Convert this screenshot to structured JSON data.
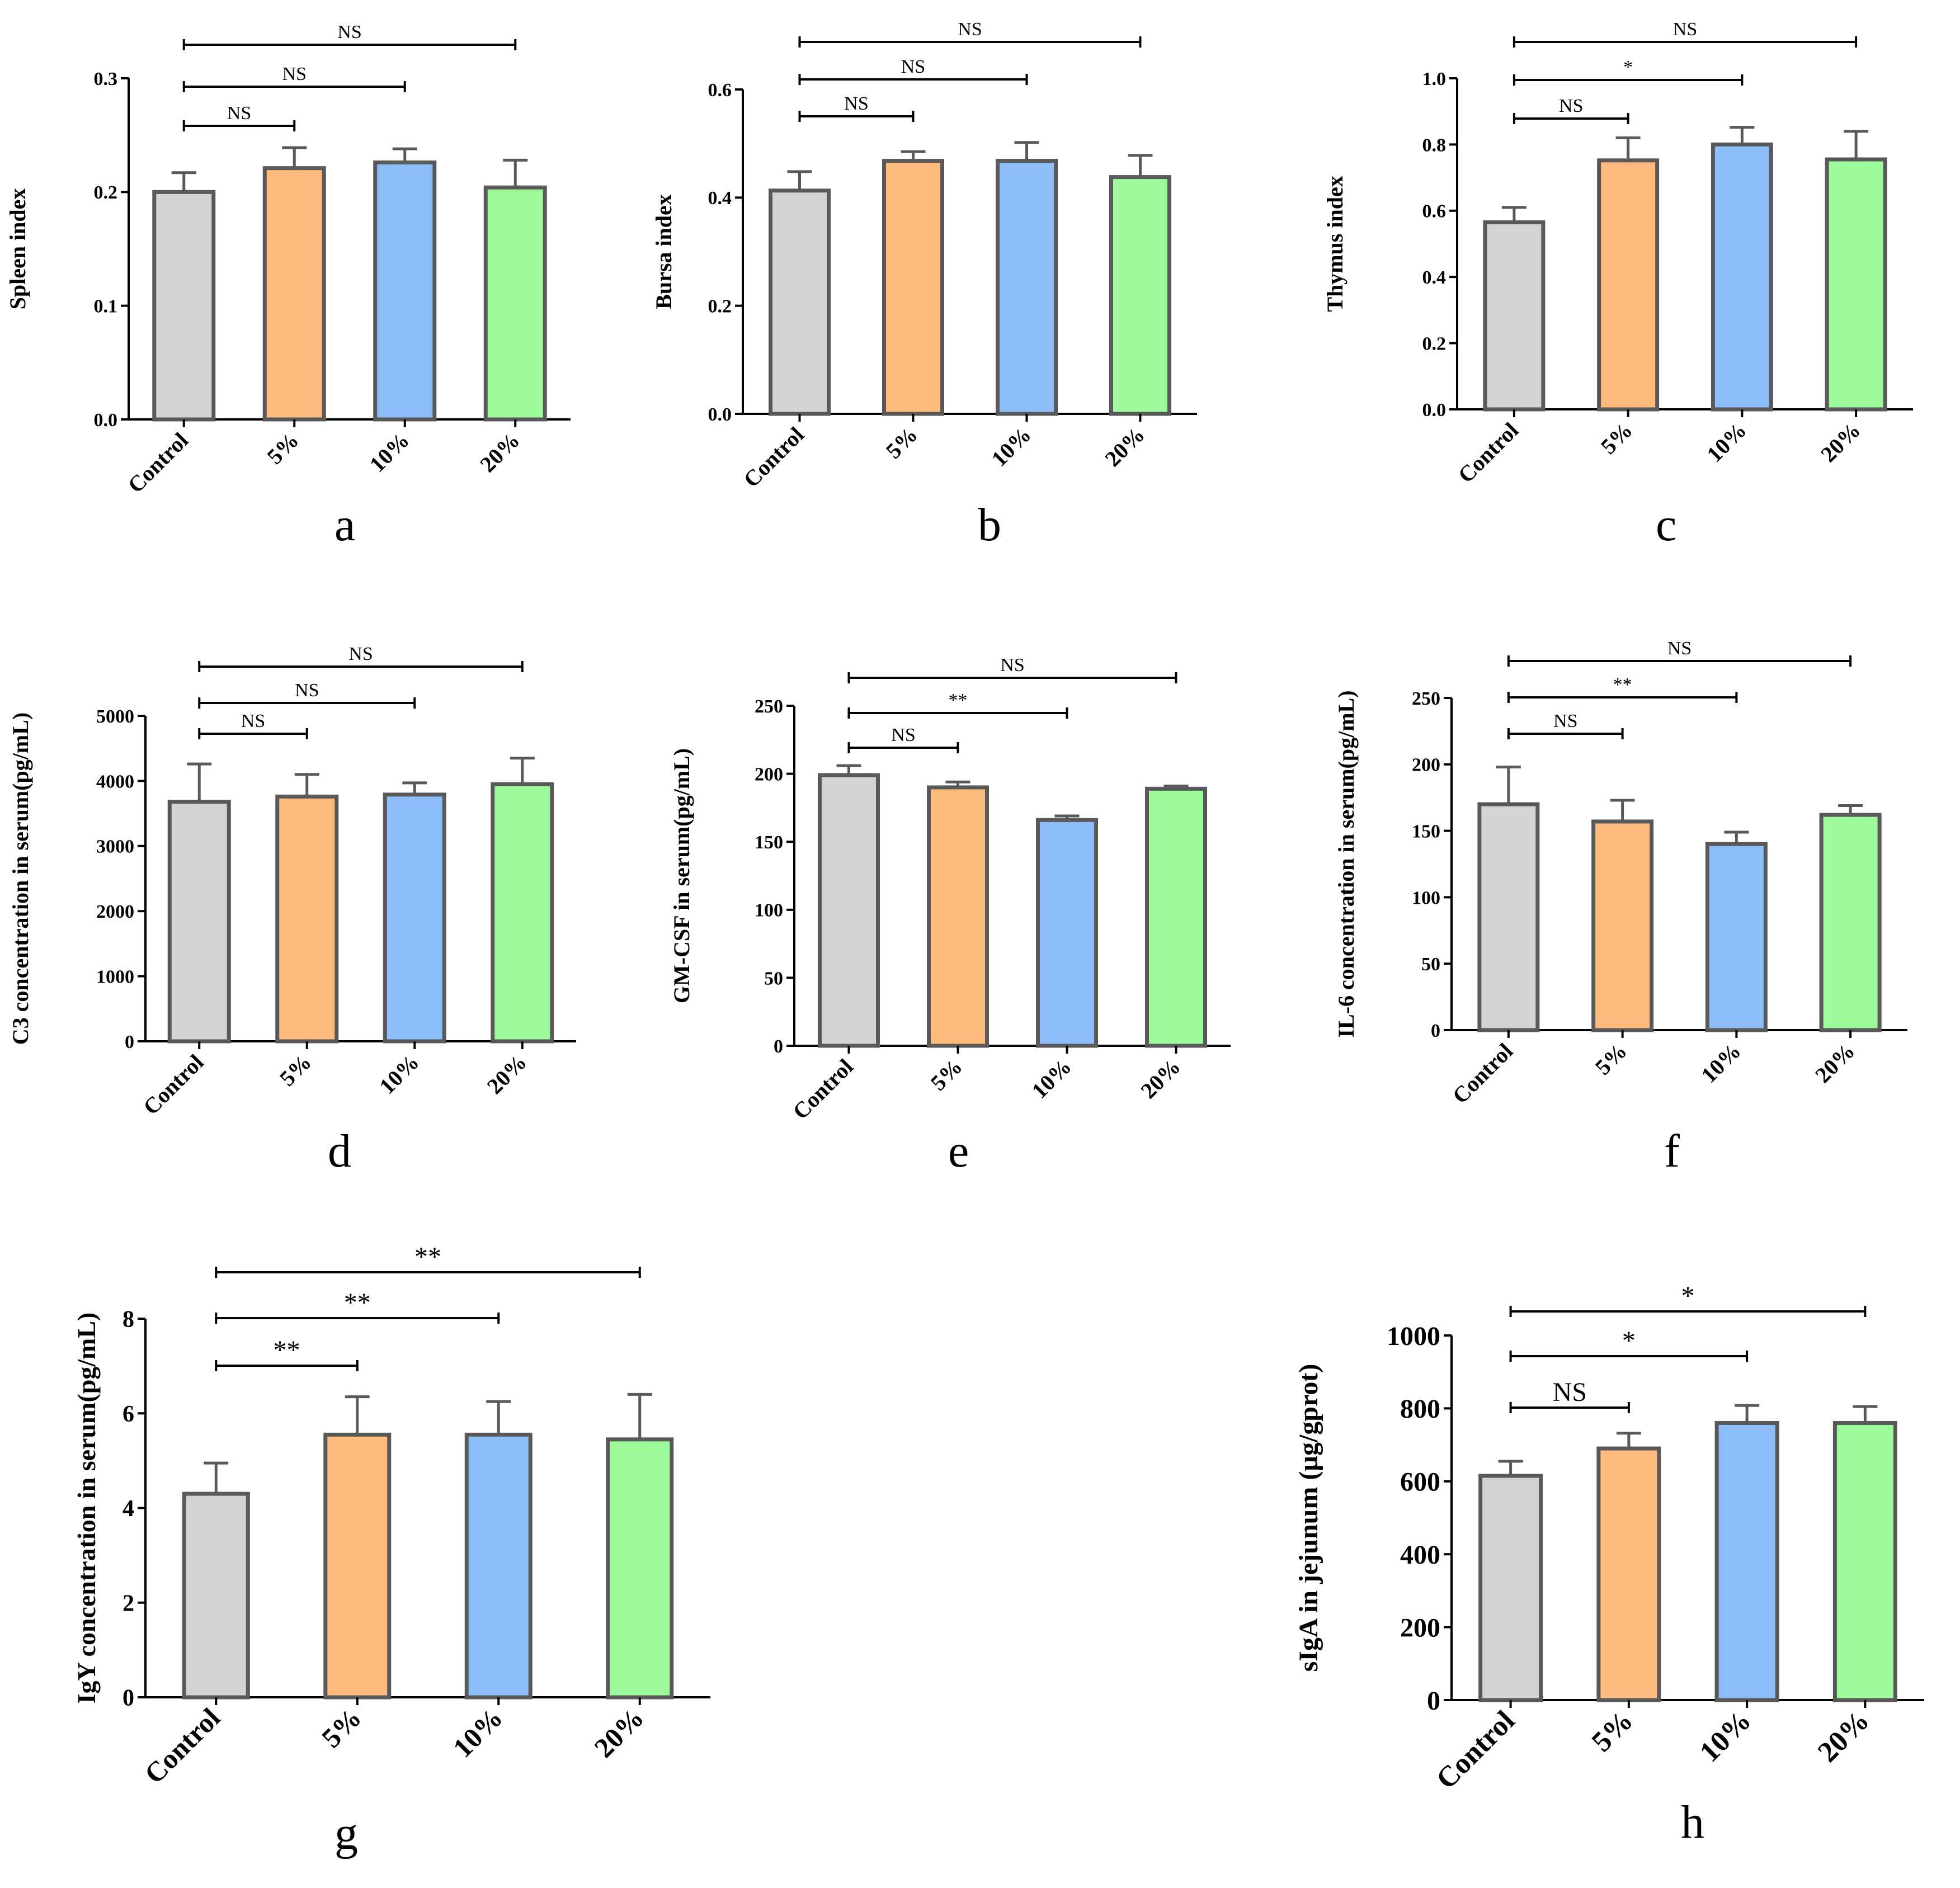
{
  "figure": {
    "colors": {
      "Control": "#d3d3d3",
      "5%": "#ffbb7e",
      "10%": "#8dbdf9",
      "20%": "#9cfa9a",
      "bar_edge": "#595959"
    }
  },
  "chart_data": [
    {
      "panel": "a",
      "type": "bar",
      "title": "",
      "xlabel": "",
      "ylabel": "Spleen index",
      "categories": [
        "Control",
        "5%",
        "10%",
        "20%"
      ],
      "values": [
        0.2,
        0.221,
        0.226,
        0.204
      ],
      "errors": [
        0.017,
        0.018,
        0.012,
        0.024
      ],
      "ylim": [
        0,
        0.3
      ],
      "yticks": [
        0.0,
        0.1,
        0.2,
        0.3
      ],
      "ytick_labels": [
        "0.0",
        "0.1",
        "0.2",
        "0.3"
      ],
      "comparisons": [
        {
          "from": "Control",
          "to": "5%",
          "label": "NS"
        },
        {
          "from": "Control",
          "to": "10%",
          "label": "NS"
        },
        {
          "from": "Control",
          "to": "20%",
          "label": "NS"
        }
      ]
    },
    {
      "panel": "b",
      "type": "bar",
      "title": "",
      "xlabel": "",
      "ylabel": "Bursa index",
      "categories": [
        "Control",
        "5%",
        "10%",
        "20%"
      ],
      "values": [
        0.413,
        0.468,
        0.468,
        0.438
      ],
      "errors": [
        0.035,
        0.017,
        0.034,
        0.04
      ],
      "ylim": [
        0,
        0.6
      ],
      "yticks": [
        0.0,
        0.2,
        0.4,
        0.6
      ],
      "ytick_labels": [
        "0.0",
        "0.2",
        "0.4",
        "0.6"
      ],
      "comparisons": [
        {
          "from": "Control",
          "to": "5%",
          "label": "NS"
        },
        {
          "from": "Control",
          "to": "10%",
          "label": "NS"
        },
        {
          "from": "Control",
          "to": "20%",
          "label": "NS"
        }
      ]
    },
    {
      "panel": "c",
      "type": "bar",
      "title": "",
      "xlabel": "",
      "ylabel": "Thymus index",
      "categories": [
        "Control",
        "5%",
        "10%",
        "20%"
      ],
      "values": [
        0.565,
        0.752,
        0.8,
        0.755
      ],
      "errors": [
        0.045,
        0.068,
        0.052,
        0.085
      ],
      "ylim": [
        0,
        1.0
      ],
      "yticks": [
        0.0,
        0.2,
        0.4,
        0.6,
        0.8,
        1.0
      ],
      "ytick_labels": [
        "0.0",
        "0.2",
        "0.4",
        "0.6",
        "0.8",
        "1.0"
      ],
      "comparisons": [
        {
          "from": "Control",
          "to": "5%",
          "label": "NS"
        },
        {
          "from": "Control",
          "to": "10%",
          "label": "*"
        },
        {
          "from": "Control",
          "to": "20%",
          "label": "NS"
        }
      ]
    },
    {
      "panel": "d",
      "type": "bar",
      "title": "",
      "xlabel": "",
      "ylabel": "C3 concentration  in serum(pg/mL)",
      "categories": [
        "Control",
        "5%",
        "10%",
        "20%"
      ],
      "values": [
        3680,
        3760,
        3790,
        3950
      ],
      "errors": [
        580,
        340,
        180,
        400
      ],
      "ylim": [
        0,
        5000
      ],
      "yticks": [
        0,
        1000,
        2000,
        3000,
        4000,
        5000
      ],
      "ytick_labels": [
        "0",
        "1000",
        "2000",
        "3000",
        "4000",
        "5000"
      ],
      "comparisons": [
        {
          "from": "Control",
          "to": "5%",
          "label": "NS"
        },
        {
          "from": "Control",
          "to": "10%",
          "label": "NS"
        },
        {
          "from": "Control",
          "to": "20%",
          "label": "NS"
        }
      ]
    },
    {
      "panel": "e",
      "type": "bar",
      "title": "",
      "xlabel": "",
      "ylabel": "GM-CSF in serum(pg/mL)",
      "categories": [
        "Control",
        "5%",
        "10%",
        "20%"
      ],
      "values": [
        199,
        190,
        166,
        189
      ],
      "errors": [
        7,
        4,
        3,
        2
      ],
      "ylim": [
        0,
        250
      ],
      "yticks": [
        0,
        50,
        100,
        150,
        200,
        250
      ],
      "ytick_labels": [
        "0",
        "50",
        "100",
        "150",
        "200",
        "250"
      ],
      "comparisons": [
        {
          "from": "Control",
          "to": "5%",
          "label": "NS"
        },
        {
          "from": "Control",
          "to": "10%",
          "label": "**"
        },
        {
          "from": "Control",
          "to": "20%",
          "label": "NS"
        }
      ]
    },
    {
      "panel": "f",
      "type": "bar",
      "title": "",
      "xlabel": "",
      "ylabel": "IL-6 concentration in serum(pg/mL)",
      "categories": [
        "Control",
        "5%",
        "10%",
        "20%"
      ],
      "values": [
        170,
        157,
        140,
        162
      ],
      "errors": [
        28,
        16,
        9,
        7
      ],
      "ylim": [
        0,
        250
      ],
      "yticks": [
        0,
        50,
        100,
        150,
        200,
        250
      ],
      "ytick_labels": [
        "0",
        "50",
        "100",
        "150",
        "200",
        "250"
      ],
      "comparisons": [
        {
          "from": "Control",
          "to": "5%",
          "label": "NS"
        },
        {
          "from": "Control",
          "to": "10%",
          "label": "**"
        },
        {
          "from": "Control",
          "to": "20%",
          "label": "NS"
        }
      ]
    },
    {
      "panel": "g",
      "type": "bar",
      "title": "",
      "xlabel": "",
      "ylabel": "IgY concentration in serum(pg/mL)",
      "categories": [
        "Control",
        "5%",
        "10%",
        "20%"
      ],
      "values": [
        4.3,
        5.55,
        5.55,
        5.45
      ],
      "errors": [
        0.65,
        0.8,
        0.7,
        0.95
      ],
      "ylim": [
        0,
        8
      ],
      "yticks": [
        0,
        2,
        4,
        6,
        8
      ],
      "ytick_labels": [
        "0",
        "2",
        "4",
        "6",
        "8"
      ],
      "comparisons": [
        {
          "from": "Control",
          "to": "5%",
          "label": "**"
        },
        {
          "from": "Control",
          "to": "10%",
          "label": "**"
        },
        {
          "from": "Control",
          "to": "20%",
          "label": "**"
        }
      ]
    },
    {
      "panel": "h",
      "type": "bar",
      "title": "",
      "xlabel": "",
      "ylabel": "sIgA in jejunum (µg/gprot)",
      "categories": [
        "Control",
        "5%",
        "10%",
        "20%"
      ],
      "values": [
        615,
        690,
        760,
        760
      ],
      "errors": [
        40,
        42,
        48,
        45
      ],
      "ylim": [
        0,
        1000
      ],
      "yticks": [
        0,
        200,
        400,
        600,
        800,
        1000
      ],
      "ytick_labels": [
        "0",
        "200",
        "400",
        "600",
        "800",
        "1000"
      ],
      "comparisons": [
        {
          "from": "Control",
          "to": "5%",
          "label": "NS"
        },
        {
          "from": "Control",
          "to": "10%",
          "label": "*"
        },
        {
          "from": "Control",
          "to": "20%",
          "label": "*"
        }
      ]
    }
  ]
}
